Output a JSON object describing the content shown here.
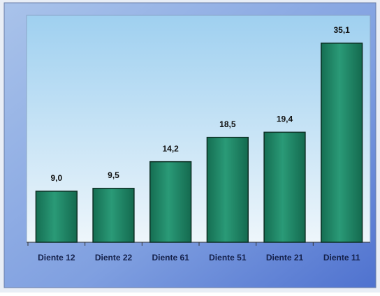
{
  "chart_data": {
    "type": "bar",
    "categories": [
      "Diente 12",
      "Diente 22",
      "Diente 61",
      "Diente 51",
      "Diente 21",
      "Diente 11"
    ],
    "values": [
      9.0,
      9.5,
      14.2,
      18.5,
      19.4,
      35.1
    ],
    "value_labels": [
      "9,0",
      "9,5",
      "14,2",
      "18,5",
      "19,4",
      "35,1"
    ],
    "color": "#1e8a68",
    "ylim": [
      0,
      40
    ]
  }
}
